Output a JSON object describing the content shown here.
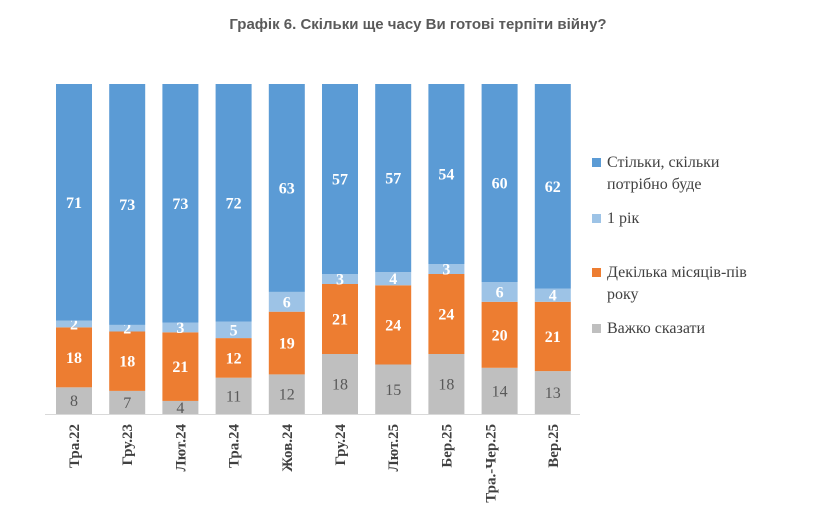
{
  "chart_data": {
    "type": "bar",
    "stacked": true,
    "title": "Графік 6. Скільки ще часу Ви готові терпіти війну?",
    "categories": [
      "Тра.22",
      "Гру.23",
      "Лют.24",
      "Тра.24",
      "Жов.24",
      "Гру.24",
      "Лют.25",
      "Бер.25",
      "Тра.-Чер.25",
      "Вер.25"
    ],
    "series": [
      {
        "name": "Важко сказати",
        "color": "#bfbfbf",
        "values": [
          8,
          7,
          4,
          11,
          12,
          18,
          15,
          18,
          14,
          13
        ]
      },
      {
        "name": "Декілька місяців-пів року",
        "color": "#ed7d31",
        "values": [
          18,
          18,
          21,
          12,
          19,
          21,
          24,
          24,
          20,
          21
        ]
      },
      {
        "name": "1 рік",
        "color": "#9dc3e6",
        "values": [
          2,
          2,
          3,
          5,
          6,
          3,
          4,
          3,
          6,
          4
        ]
      },
      {
        "name": "Стільки, скільки потрібно буде",
        "color": "#5b9bd5",
        "values": [
          71,
          73,
          73,
          72,
          63,
          57,
          57,
          54,
          60,
          62
        ]
      }
    ],
    "legend_order": [
      "Стільки, скільки потрібно буде",
      "1 рік",
      "Декілька місяців-пів року",
      "Важко сказати"
    ],
    "ylim": [
      0,
      100
    ],
    "grid": false,
    "legend_position": "right"
  }
}
